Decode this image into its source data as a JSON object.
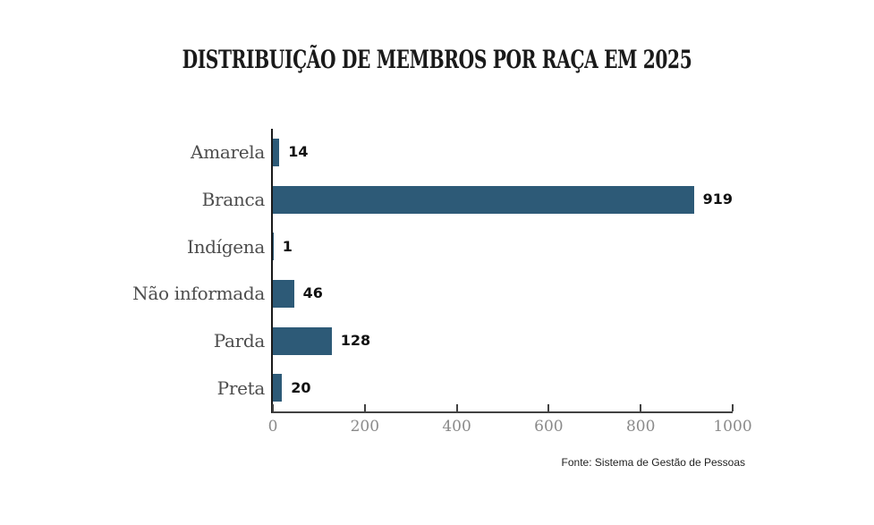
{
  "title": "DISTRIBUIÇÃO DE MEMBROS POR RAÇA EM 2025",
  "source_note": "Fonte: Sistema de Gestão de Pessoas",
  "colors": {
    "bar": "#2d5a77",
    "title": "#1a1a1a",
    "category": "#4d4d4d",
    "value": "#111111",
    "tick": "#8a8a8a",
    "axis": "#424242",
    "yaxis": "#1a1a1a",
    "source": "#1f1f1f",
    "background": "#ffffff"
  },
  "chart_data": {
    "type": "bar",
    "orientation": "horizontal",
    "title": "DISTRIBUIÇÃO DE MEMBROS POR RAÇA EM 2025",
    "categories": [
      "Amarela",
      "Branca",
      "Indígena",
      "Não informada",
      "Parda",
      "Preta"
    ],
    "values": [
      14,
      919,
      1,
      46,
      128,
      20
    ],
    "value_labels": true,
    "xlabel": "",
    "ylabel": "",
    "xlim": [
      0,
      1000
    ],
    "xticks": [
      0,
      200,
      400,
      600,
      800,
      1000
    ],
    "grid": false,
    "legend": false,
    "source": "Fonte: Sistema de Gestão de Pessoas"
  }
}
